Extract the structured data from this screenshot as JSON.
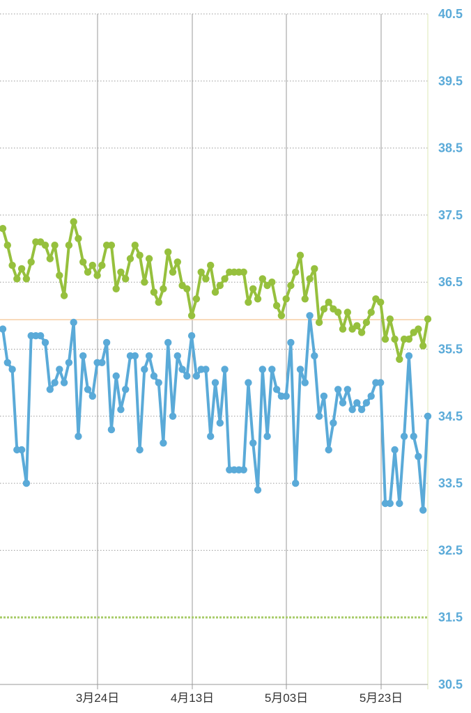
{
  "chart_data": {
    "type": "line",
    "y_ticks": [
      "30.5",
      "31.5",
      "32.5",
      "33.5",
      "34.5",
      "35.5",
      "36.5",
      "37.5",
      "38.5",
      "39.5",
      "40.5"
    ],
    "ylim": [
      30.5,
      40.5
    ],
    "x_tick_labels": [
      "3月24日",
      "4月13日",
      "5月03日",
      "5月23日"
    ],
    "grid": true,
    "reference_lines": [
      {
        "y": 35.94,
        "color": "#f6cda4",
        "style": "solid"
      },
      {
        "y": 31.5,
        "color": "#a8cc6a",
        "style": "dashed"
      }
    ],
    "colors": {
      "series_1": "#96c03d",
      "series_2": "#5aaad8",
      "tick_text": "#5aaad8"
    },
    "series": [
      {
        "values": [
          37.3,
          37.05,
          36.75,
          36.55,
          36.7,
          36.55,
          36.8,
          37.1,
          37.1,
          37.05,
          36.85,
          37.05,
          36.6,
          36.3,
          37.05,
          37.4,
          37.15,
          36.8,
          36.65,
          36.75,
          36.6,
          36.75,
          37.05,
          37.05,
          36.4,
          36.65,
          36.55,
          36.85,
          37.05,
          36.9,
          36.5,
          36.85,
          36.35,
          36.2,
          36.4,
          36.95,
          36.65,
          36.8,
          36.45,
          36.4,
          36.0,
          36.25,
          36.65,
          36.55,
          36.75,
          36.35,
          36.45,
          36.55,
          36.65,
          36.65,
          36.65,
          36.65,
          36.2,
          36.4,
          36.25,
          36.55,
          36.45,
          36.5,
          36.15,
          36.0,
          36.25,
          36.45,
          36.65,
          36.9,
          36.25,
          36.55,
          36.7,
          35.9,
          36.1,
          36.2,
          36.1,
          36.05,
          35.8,
          36.05,
          35.8,
          35.85,
          35.75,
          35.9,
          36.05,
          36.25,
          36.2,
          35.65,
          35.95,
          35.65,
          35.35,
          35.65,
          35.65,
          35.75,
          35.8,
          35.55,
          35.95
        ]
      },
      {
        "values": [
          35.8,
          35.3,
          35.2,
          34.0,
          34.0,
          33.5,
          35.7,
          35.7,
          35.7,
          35.6,
          34.9,
          35.0,
          35.2,
          35.0,
          35.3,
          35.9,
          34.2,
          35.4,
          34.9,
          34.8,
          35.3,
          35.3,
          35.6,
          34.3,
          35.1,
          34.6,
          34.9,
          35.4,
          35.4,
          34.0,
          35.2,
          35.4,
          35.1,
          35.0,
          34.1,
          35.6,
          34.5,
          35.4,
          35.2,
          35.1,
          35.7,
          35.1,
          35.2,
          35.2,
          34.2,
          35.0,
          34.4,
          35.2,
          33.7,
          33.7,
          33.7,
          33.7,
          35.0,
          34.1,
          33.4,
          35.2,
          34.2,
          35.2,
          34.9,
          34.8,
          34.8,
          35.6,
          33.5,
          35.2,
          35.0,
          36.0,
          35.4,
          34.5,
          34.8,
          34.0,
          34.4,
          34.9,
          34.7,
          34.9,
          34.6,
          34.7,
          34.6,
          34.7,
          34.8,
          35.0,
          35.0,
          33.2,
          33.2,
          34.0,
          33.2,
          34.2,
          35.4,
          34.2,
          33.9,
          33.1,
          34.5
        ]
      }
    ]
  }
}
